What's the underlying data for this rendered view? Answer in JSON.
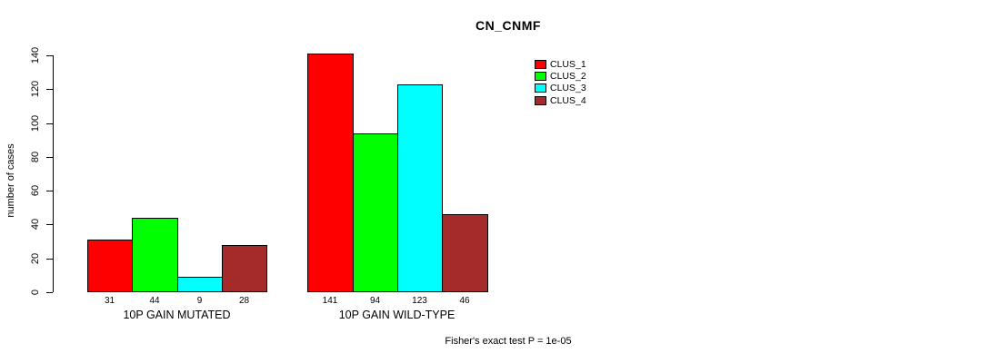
{
  "chart_data": {
    "type": "bar",
    "title": "CN_CNMF",
    "ylabel": "number of cases",
    "xlabel": "",
    "ylim": [
      0,
      140
    ],
    "yticks": [
      0,
      20,
      40,
      60,
      80,
      100,
      120,
      140
    ],
    "categories": [
      "10P GAIN MUTATED",
      "10P GAIN WILD-TYPE"
    ],
    "series": [
      {
        "name": "CLUS_1",
        "color": "#ff0000",
        "values": [
          31,
          141
        ]
      },
      {
        "name": "CLUS_2",
        "color": "#00ff00",
        "values": [
          44,
          94
        ]
      },
      {
        "name": "CLUS_3",
        "color": "#00ffff",
        "values": [
          9,
          123
        ]
      },
      {
        "name": "CLUS_4",
        "color": "#a52a2a",
        "values": [
          28,
          46
        ]
      }
    ],
    "bar_value_labels": [
      [
        31,
        44,
        9,
        28
      ],
      [
        141,
        94,
        123,
        46
      ]
    ],
    "legend_position": "top-right",
    "grid": false,
    "footnote": "Fisher's exact test P = 1e-05"
  }
}
